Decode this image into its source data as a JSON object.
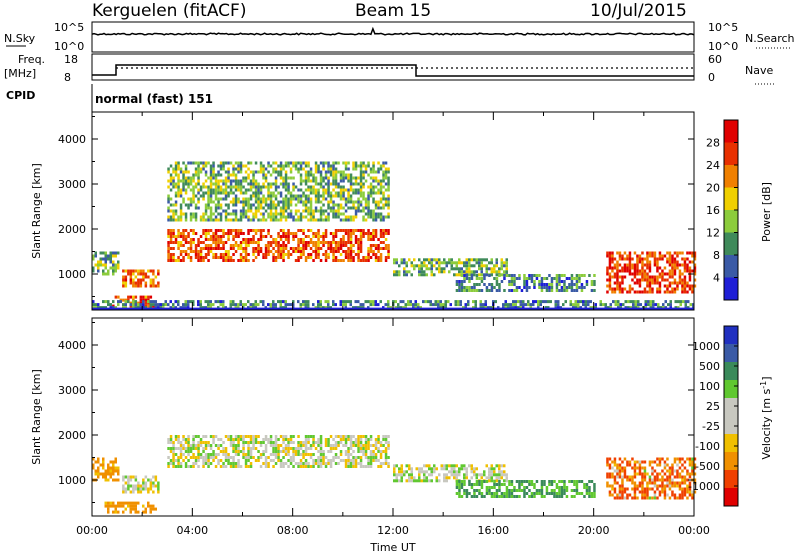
{
  "header": {
    "station": "Kerguelen (fitACF)",
    "beam": "Beam 15",
    "date": "10/Jul/2015"
  },
  "panels": {
    "nsky": {
      "left_label": "N.Sky",
      "right_label": "N.Search",
      "left_ticks": [
        "10^5",
        "10^0"
      ],
      "right_ticks": [
        "10^5",
        "10^0"
      ]
    },
    "freq": {
      "left_label_1": "Freq.",
      "left_label_2": "[MHz]",
      "right_label": "Nave",
      "left_ticks": [
        "18",
        "8"
      ],
      "right_ticks": [
        "60",
        "0"
      ]
    },
    "cpid": {
      "label": "CPID",
      "value": "normal (fast) 151"
    }
  },
  "colors": {
    "power_scale": [
      "#1f1fd6",
      "#3a5aa6",
      "#3f8a5a",
      "#8ccc3c",
      "#f0d000",
      "#f08000",
      "#e83000",
      "#e00000"
    ],
    "velocity_scale": [
      "#e00000",
      "#f04000",
      "#f09000",
      "#f0c000",
      "#c8c8c0",
      "#c8c8c0",
      "#60c830",
      "#3a8a5a",
      "#3a5aa6",
      "#2030c0"
    ],
    "ground": "#c8c8c0"
  },
  "chart_data": [
    {
      "type": "heatmap",
      "name": "power",
      "ylabel": "Slant Range [km]",
      "y_ticks": [
        1000,
        2000,
        3000,
        4000
      ],
      "ylim": [
        200,
        4600
      ],
      "xlim": [
        0,
        24
      ],
      "x_ticks": [
        0,
        4,
        8,
        12,
        16,
        20,
        24
      ],
      "colorbar": {
        "label": "Power [dB]",
        "range": [
          0,
          32
        ],
        "ticks": [
          "28",
          "24",
          "20",
          "16",
          "12",
          "8",
          "4"
        ]
      },
      "echo_regions": [
        {
          "x": [
            0.0,
            1.0
          ],
          "y": [
            1000,
            1500
          ],
          "value": 12
        },
        {
          "x": [
            1.2,
            2.6
          ],
          "y": [
            700,
            1100
          ],
          "value": 24
        },
        {
          "x": [
            0.8,
            2.5
          ],
          "y": [
            300,
            520
          ],
          "value": 26
        },
        {
          "x": [
            3.0,
            11.8
          ],
          "y": [
            1300,
            2000
          ],
          "value": 26
        },
        {
          "x": [
            3.0,
            11.8
          ],
          "y": [
            2200,
            3500
          ],
          "value": 12
        },
        {
          "x": [
            12.0,
            16.5
          ],
          "y": [
            1000,
            1350
          ],
          "value": 12
        },
        {
          "x": [
            14.5,
            20.0
          ],
          "y": [
            600,
            1000
          ],
          "value": 8
        },
        {
          "x": [
            20.5,
            24.0
          ],
          "y": [
            600,
            1500
          ],
          "value": 28
        },
        {
          "x": [
            0.0,
            24.0
          ],
          "y": [
            220,
            420
          ],
          "value": 8
        }
      ]
    },
    {
      "type": "heatmap",
      "name": "velocity",
      "ylabel": "Slant Range [km]",
      "xlabel": "Time UT",
      "y_ticks": [
        1000,
        2000,
        3000,
        4000
      ],
      "ylim": [
        200,
        4600
      ],
      "xlim": [
        0,
        24
      ],
      "x_ticks": [
        0,
        4,
        8,
        12,
        16,
        20,
        24
      ],
      "x_tick_labels": [
        "00:00",
        "04:00",
        "08:00",
        "12:00",
        "16:00",
        "20:00",
        "00:00"
      ],
      "colorbar": {
        "label": "Velocity [m s^-1]",
        "ticks": [
          "1000",
          "500",
          "100",
          "25",
          "-25",
          "-100",
          "-500",
          "-1000"
        ]
      },
      "echo_regions": [
        {
          "x": [
            0.0,
            1.0
          ],
          "y": [
            1000,
            1500
          ],
          "value": -100
        },
        {
          "x": [
            1.2,
            2.6
          ],
          "y": [
            700,
            1100
          ],
          "value": 0
        },
        {
          "x": [
            0.5,
            2.5
          ],
          "y": [
            300,
            520
          ],
          "value": -100
        },
        {
          "x": [
            3.0,
            11.8
          ],
          "y": [
            1300,
            2000
          ],
          "value": 0
        },
        {
          "x": [
            12.0,
            16.5
          ],
          "y": [
            1000,
            1350
          ],
          "value": 0
        },
        {
          "x": [
            14.5,
            20.0
          ],
          "y": [
            600,
            1000
          ],
          "value": 100
        },
        {
          "x": [
            20.5,
            24.0
          ],
          "y": [
            600,
            1500
          ],
          "value": -300
        }
      ]
    }
  ]
}
